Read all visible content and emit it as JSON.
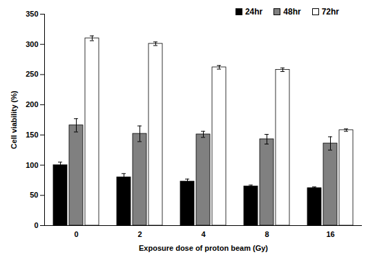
{
  "chart_data": {
    "type": "bar",
    "x_label": "Exposure dose of proton beam (Gy)",
    "y_label": "Cell viability (%)",
    "categories": [
      "0",
      "2",
      "4",
      "8",
      "16"
    ],
    "series": [
      {
        "name": "24hr",
        "color": "#000000",
        "values": [
          100,
          80,
          73,
          65,
          62
        ],
        "errors": [
          5,
          6,
          4,
          2,
          2
        ]
      },
      {
        "name": "48hr",
        "color": "#808080",
        "values": [
          166,
          152,
          151,
          143,
          136
        ],
        "errors": [
          11,
          13,
          5,
          8,
          11
        ]
      },
      {
        "name": "72hr",
        "color": "#ffffff",
        "values": [
          310,
          301,
          262,
          258,
          158
        ],
        "errors": [
          4,
          3,
          3,
          3,
          2
        ]
      }
    ],
    "ylim": [
      0,
      350
    ],
    "yticks": [
      0,
      50,
      100,
      150,
      200,
      250,
      300,
      350
    ],
    "legend": "upper right",
    "grid": false
  }
}
